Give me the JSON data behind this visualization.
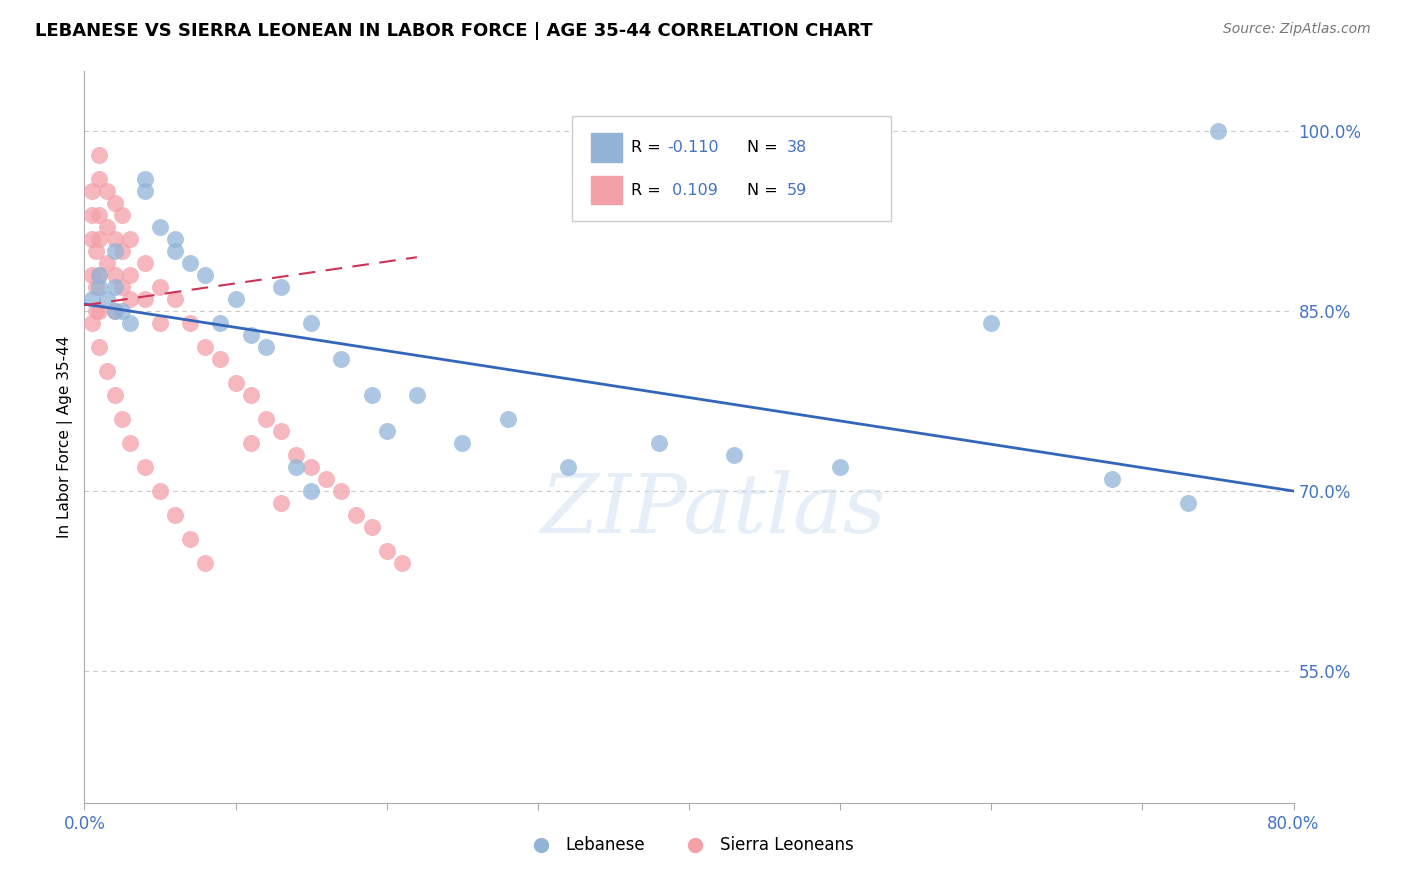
{
  "title": "LEBANESE VS SIERRA LEONEAN IN LABOR FORCE | AGE 35-44 CORRELATION CHART",
  "source": "Source: ZipAtlas.com",
  "ylabel": "In Labor Force | Age 35-44",
  "yticks": [
    1.0,
    0.85,
    0.7,
    0.55
  ],
  "ytick_labels": [
    "100.0%",
    "85.0%",
    "70.0%",
    "55.0%"
  ],
  "xlim": [
    0.0,
    0.8
  ],
  "ylim": [
    0.44,
    1.05
  ],
  "legend_r_blue": "-0.110",
  "legend_n_blue": "38",
  "legend_r_pink": "0.109",
  "legend_n_pink": "59",
  "blue_color": "#92B4D7",
  "pink_color": "#F4A0A8",
  "trendline_blue_color": "#3366BB",
  "trendline_pink_color": "#CC3355",
  "watermark": "ZIPatlas",
  "blue_x": [
    0.005,
    0.01,
    0.01,
    0.015,
    0.02,
    0.02,
    0.02,
    0.025,
    0.03,
    0.04,
    0.04,
    0.05,
    0.06,
    0.06,
    0.07,
    0.08,
    0.09,
    0.1,
    0.11,
    0.12,
    0.13,
    0.15,
    0.17,
    0.19,
    0.22,
    0.25,
    0.28,
    0.32,
    0.38,
    0.43,
    0.5,
    0.6,
    0.68,
    0.75,
    0.14,
    0.15,
    0.2,
    0.73
  ],
  "blue_y": [
    0.86,
    0.87,
    0.88,
    0.86,
    0.85,
    0.87,
    0.9,
    0.85,
    0.84,
    0.95,
    0.96,
    0.92,
    0.9,
    0.91,
    0.89,
    0.88,
    0.84,
    0.86,
    0.83,
    0.82,
    0.87,
    0.84,
    0.81,
    0.78,
    0.78,
    0.74,
    0.76,
    0.72,
    0.74,
    0.73,
    0.72,
    0.84,
    0.71,
    1.0,
    0.72,
    0.7,
    0.75,
    0.69
  ],
  "pink_x": [
    0.005,
    0.005,
    0.005,
    0.005,
    0.008,
    0.008,
    0.008,
    0.01,
    0.01,
    0.01,
    0.01,
    0.01,
    0.01,
    0.015,
    0.015,
    0.015,
    0.02,
    0.02,
    0.02,
    0.02,
    0.025,
    0.025,
    0.025,
    0.03,
    0.03,
    0.03,
    0.04,
    0.04,
    0.05,
    0.05,
    0.06,
    0.07,
    0.08,
    0.09,
    0.1,
    0.11,
    0.12,
    0.13,
    0.14,
    0.15,
    0.16,
    0.17,
    0.18,
    0.19,
    0.2,
    0.21,
    0.11,
    0.13,
    0.005,
    0.01,
    0.015,
    0.02,
    0.025,
    0.03,
    0.04,
    0.05,
    0.06,
    0.07,
    0.08
  ],
  "pink_y": [
    0.95,
    0.93,
    0.91,
    0.88,
    0.9,
    0.87,
    0.85,
    0.98,
    0.96,
    0.93,
    0.91,
    0.88,
    0.85,
    0.95,
    0.92,
    0.89,
    0.94,
    0.91,
    0.88,
    0.85,
    0.93,
    0.9,
    0.87,
    0.91,
    0.88,
    0.86,
    0.89,
    0.86,
    0.87,
    0.84,
    0.86,
    0.84,
    0.82,
    0.81,
    0.79,
    0.78,
    0.76,
    0.75,
    0.73,
    0.72,
    0.71,
    0.7,
    0.68,
    0.67,
    0.65,
    0.64,
    0.74,
    0.69,
    0.84,
    0.82,
    0.8,
    0.78,
    0.76,
    0.74,
    0.72,
    0.7,
    0.68,
    0.66,
    0.64
  ],
  "blue_trendline_x": [
    0.0,
    0.8
  ],
  "blue_trendline_y": [
    0.856,
    0.7
  ],
  "pink_trendline_x": [
    0.0,
    0.22
  ],
  "pink_trendline_y": [
    0.855,
    0.895
  ]
}
